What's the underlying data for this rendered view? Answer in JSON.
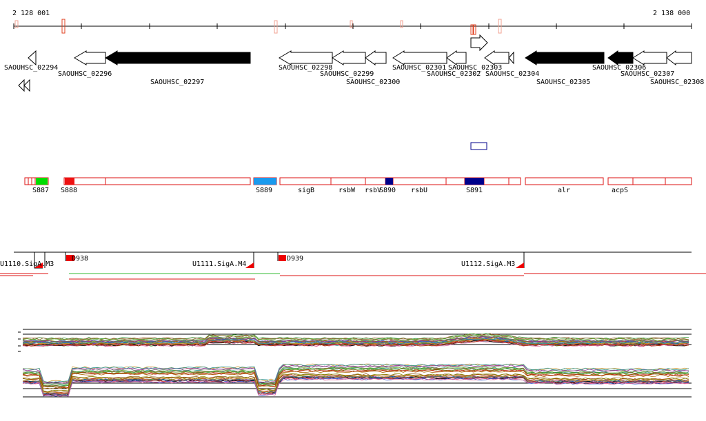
{
  "ruler": {
    "start_label": "2 128 001",
    "end_label": "2 138 000"
  },
  "genes": [
    {
      "label": "SAOUHSC_02294",
      "strand": "-",
      "style": "open"
    },
    {
      "label": "SAOUHSC_02296",
      "strand": "-",
      "style": "open"
    },
    {
      "label": "SAOUHSC_02297",
      "strand": "-",
      "style": "filled"
    },
    {
      "label": "SAOUHSC_02298",
      "strand": "-",
      "style": "open"
    },
    {
      "label": "SAOUHSC_02299",
      "strand": "-",
      "style": "open"
    },
    {
      "label": "SAOUHSC_02300",
      "strand": "-",
      "style": "open"
    },
    {
      "label": "SAOUHSC_02301",
      "strand": "-",
      "style": "open"
    },
    {
      "label": "SAOUHSC_02302",
      "strand": "-",
      "style": "open"
    },
    {
      "label": "SAOUHSC_02303",
      "strand": "+",
      "style": "open"
    },
    {
      "label": "SAOUHSC_02304",
      "strand": "-",
      "style": "open"
    },
    {
      "label": "SAOUHSC_02305",
      "strand": "-",
      "style": "filled"
    },
    {
      "label": "SAOUHSC_02306",
      "strand": "-",
      "style": "filled"
    },
    {
      "label": "SAOUHSC_02307",
      "strand": "-",
      "style": "open"
    },
    {
      "label": "SAOUHSC_02308",
      "strand": "-",
      "style": "open"
    }
  ],
  "features": [
    {
      "label": "S887",
      "color": "#00dd00"
    },
    {
      "label": "S888",
      "color": "#ee1111"
    },
    {
      "label": "S889",
      "color": "#1a9aee"
    },
    {
      "label": "sigB",
      "color": ""
    },
    {
      "label": "rsbW",
      "color": ""
    },
    {
      "label": "rsbV",
      "color": ""
    },
    {
      "label": "S890",
      "color": "#00008b"
    },
    {
      "label": "rsbU",
      "color": ""
    },
    {
      "label": "S891",
      "color": "#00008b"
    },
    {
      "label": "alr",
      "color": ""
    },
    {
      "label": "acpS",
      "color": ""
    }
  ],
  "transcripts": [
    {
      "label": "U1110.SigA.M3"
    },
    {
      "label": "D938"
    },
    {
      "label": "U1111.SigA.M4"
    },
    {
      "label": "D939"
    },
    {
      "label": "U1112.SigA.M3"
    }
  ],
  "colors": {
    "outline_red": "#dd1111",
    "gene_fill": "#000000",
    "tss_red": "#ee0000",
    "feature_blue": "#00008b",
    "line_green": "#33bb33"
  }
}
